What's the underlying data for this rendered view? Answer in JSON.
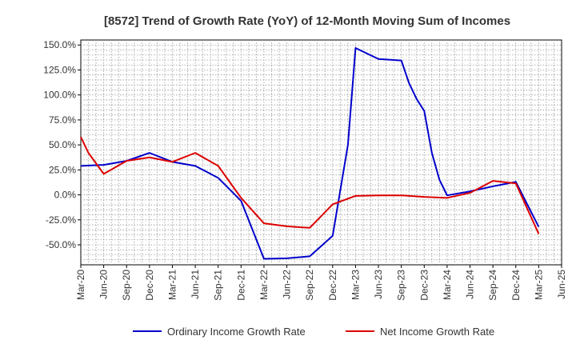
{
  "chart_data": {
    "type": "line",
    "title": "[8572]  Trend of Growth Rate (YoY) of 12-Month Moving Sum of Incomes",
    "xlabel": "",
    "ylabel": "",
    "ylim": [
      -70,
      155
    ],
    "y_ticks": [
      150,
      125,
      100,
      75,
      50,
      25,
      0,
      -25,
      -50
    ],
    "y_tick_labels": [
      "150.0%",
      "125.0%",
      "100.0%",
      "75.0%",
      "50.0%",
      "25.0%",
      "0.0%",
      "-25.0%",
      "-50.0%"
    ],
    "x_tick_labels": [
      "Mar-20",
      "Jun-20",
      "Sep-20",
      "Dec-20",
      "Mar-21",
      "Jun-21",
      "Sep-21",
      "Dec-21",
      "Mar-22",
      "Jun-22",
      "Sep-22",
      "Dec-22",
      "Mar-23",
      "Jun-23",
      "Sep-23",
      "Dec-23",
      "Mar-24",
      "Jun-24",
      "Sep-24",
      "Dec-24",
      "Mar-25",
      "Jun-25"
    ],
    "grid": true,
    "legend_position": "bottom",
    "x_months": [
      "Mar-20",
      "Apr-20",
      "May-20",
      "Jun-20",
      "Jul-20",
      "Aug-20",
      "Sep-20",
      "Oct-20",
      "Nov-20",
      "Dec-20",
      "Jan-21",
      "Feb-21",
      "Mar-21",
      "Apr-21",
      "May-21",
      "Jun-21",
      "Jul-21",
      "Aug-21",
      "Sep-21",
      "Oct-21",
      "Nov-21",
      "Dec-21",
      "Jan-22",
      "Feb-22",
      "Mar-22",
      "Apr-22",
      "May-22",
      "Jun-22",
      "Jul-22",
      "Aug-22",
      "Sep-22",
      "Oct-22",
      "Nov-22",
      "Dec-22",
      "Jan-23",
      "Feb-23",
      "Mar-23",
      "Apr-23",
      "May-23",
      "Jun-23",
      "Jul-23",
      "Aug-23",
      "Sep-23",
      "Oct-23",
      "Nov-23",
      "Dec-23",
      "Jan-24",
      "Feb-24",
      "Mar-24",
      "Apr-24",
      "May-24",
      "Jun-24",
      "Jul-24",
      "Aug-24",
      "Sep-24",
      "Oct-24",
      "Nov-24",
      "Dec-24",
      "Jan-25",
      "Feb-25",
      "Mar-25",
      "Apr-25",
      "May-25",
      "Jun-25"
    ],
    "series": [
      {
        "name": "Ordinary Income Growth Rate",
        "color": "#0000cc",
        "points": [
          [
            "Mar-20",
            29
          ],
          [
            "Jun-20",
            30
          ],
          [
            "Sep-20",
            34
          ],
          [
            "Dec-20",
            42
          ],
          [
            "Mar-21",
            33
          ],
          [
            "Jun-21",
            29
          ],
          [
            "Sep-21",
            17
          ],
          [
            "Dec-21",
            -6
          ],
          [
            "Mar-22",
            -64
          ],
          [
            "Jun-22",
            -63.5
          ],
          [
            "Sep-22",
            -61.5
          ],
          [
            "Dec-22",
            -41
          ],
          [
            "Feb-23",
            50
          ],
          [
            "Mar-23",
            147
          ],
          [
            "Jun-23",
            136
          ],
          [
            "Sep-23",
            134.5
          ],
          [
            "Oct-23",
            112
          ],
          [
            "Nov-23",
            96
          ],
          [
            "Dec-23",
            84
          ],
          [
            "Jan-24",
            42
          ],
          [
            "Feb-24",
            15
          ],
          [
            "Mar-24",
            -0.5
          ],
          [
            "Jun-24",
            3.5
          ],
          [
            "Sep-24",
            8.5
          ],
          [
            "Dec-24",
            13
          ],
          [
            "Mar-25",
            -32
          ]
        ]
      },
      {
        "name": "Net Income Growth Rate",
        "color": "#dd0000",
        "points": [
          [
            "Mar-20",
            58
          ],
          [
            "Apr-20",
            42
          ],
          [
            "Jun-20",
            21
          ],
          [
            "Sep-20",
            34
          ],
          [
            "Dec-20",
            37.5
          ],
          [
            "Mar-21",
            33
          ],
          [
            "Jun-21",
            42
          ],
          [
            "Sep-21",
            29
          ],
          [
            "Dec-21",
            -3
          ],
          [
            "Mar-22",
            -28.5
          ],
          [
            "Jun-22",
            -31.5
          ],
          [
            "Sep-22",
            -33
          ],
          [
            "Dec-22",
            -9.5
          ],
          [
            "Mar-23",
            -1
          ],
          [
            "Jun-23",
            -0.5
          ],
          [
            "Sep-23",
            -0.5
          ],
          [
            "Dec-23",
            -2
          ],
          [
            "Mar-24",
            -3
          ],
          [
            "Jun-24",
            2
          ],
          [
            "Sep-24",
            14
          ],
          [
            "Dec-24",
            11.5
          ],
          [
            "Mar-25",
            -39
          ]
        ]
      }
    ]
  }
}
